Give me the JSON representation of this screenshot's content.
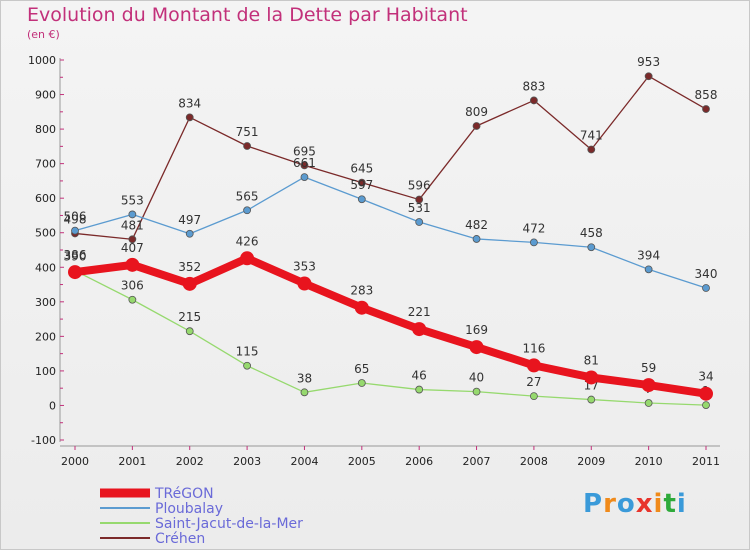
{
  "title": "Evolution du Montant de la Dette par Habitant",
  "subtitle": "(en €)",
  "brand": {
    "text": "Proxiti",
    "colors": [
      "#3a9ad9",
      "#f08a1a",
      "#3a9ad9",
      "#e8342c",
      "#f08a1a",
      "#2eaa3a",
      "#3a9ad9"
    ]
  },
  "chart_data": {
    "type": "line",
    "x": [
      "2000",
      "2001",
      "2002",
      "2003",
      "2004",
      "2005",
      "2006",
      "2007",
      "2008",
      "2009",
      "2010",
      "2011"
    ],
    "ylim": [
      -100,
      1000
    ],
    "yticks": [
      -100,
      0,
      100,
      200,
      300,
      400,
      500,
      600,
      700,
      800,
      900,
      1000
    ],
    "grid": false,
    "legend_position": "bottom-left",
    "series": [
      {
        "name": "TRéGON",
        "color": "#e8141e",
        "values": [
          386,
          407,
          352,
          426,
          353,
          283,
          221,
          169,
          116,
          81,
          59,
          34
        ],
        "labels": [
          "386",
          "407",
          "352",
          "426",
          "353",
          "283",
          "221",
          "169",
          "116",
          "81",
          "59",
          "34"
        ]
      },
      {
        "name": "Ploubalay",
        "color": "#5b9bd0",
        "values": [
          506,
          553,
          497,
          565,
          661,
          597,
          531,
          482,
          472,
          458,
          394,
          340
        ],
        "labels": [
          "506",
          "553",
          "497",
          "565",
          "661",
          "597",
          "531",
          "482",
          "472",
          "458",
          "394",
          "340"
        ]
      },
      {
        "name": "Saint-Jacut-de-la-Mer",
        "color": "#96d96e",
        "values": [
          390,
          306,
          215,
          115,
          38,
          65,
          46,
          40,
          27,
          17,
          7,
          1
        ],
        "labels": [
          "390",
          "306",
          "215",
          "115",
          "38",
          "65",
          "46",
          "40",
          "27",
          "17",
          "7",
          "1"
        ]
      },
      {
        "name": "Créhen",
        "color": "#7b2a2a",
        "values": [
          498,
          481,
          834,
          751,
          695,
          645,
          596,
          809,
          883,
          741,
          953,
          858
        ],
        "labels": [
          "498",
          "481",
          "834",
          "751",
          "695",
          "645",
          "596",
          "809",
          "883",
          "741",
          "953",
          "858"
        ]
      }
    ]
  }
}
